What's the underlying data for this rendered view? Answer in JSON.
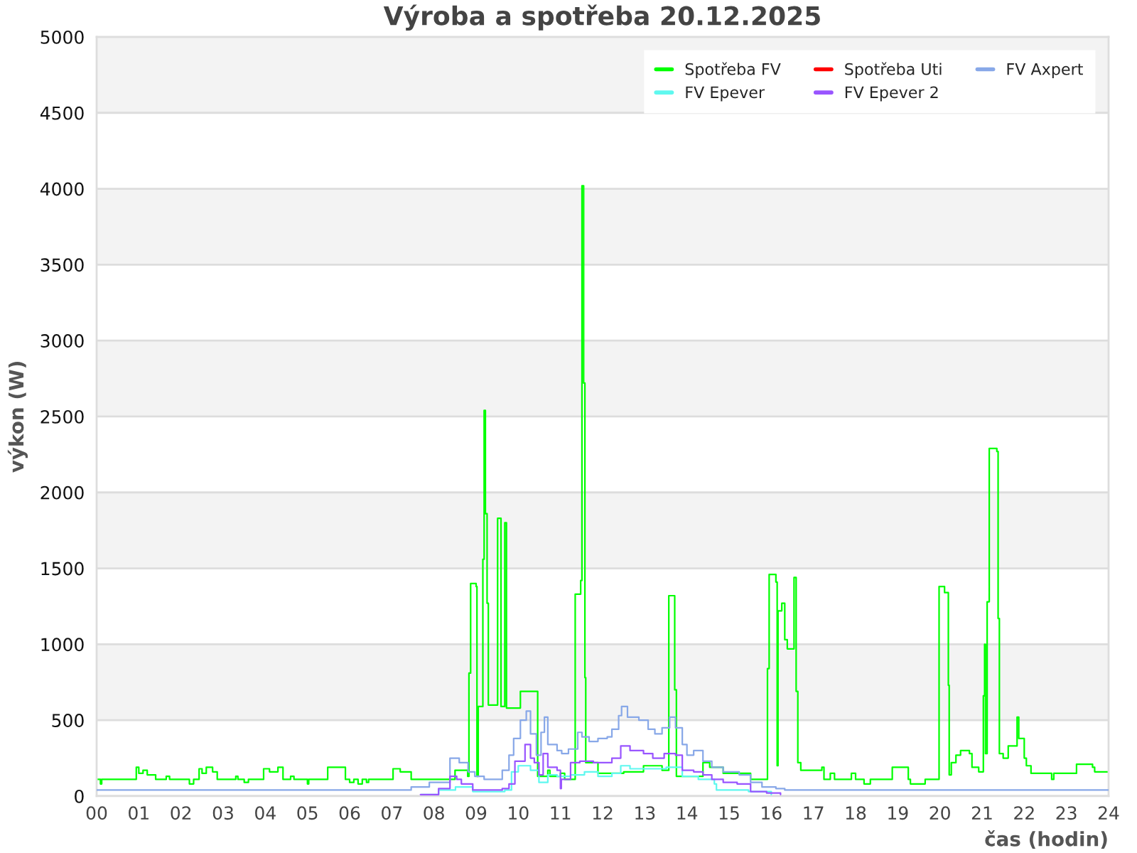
{
  "chart_data": {
    "type": "step",
    "title": "Výroba a spotřeba 20.12.2025",
    "xlabel": "čas (hodin)",
    "ylabel": "výkon (W)",
    "xlim": [
      0,
      24
    ],
    "xticks": [
      {
        "value": 0,
        "label": "00"
      },
      {
        "value": 1,
        "label": "01"
      },
      {
        "value": 2,
        "label": "02"
      },
      {
        "value": 3,
        "label": "03"
      },
      {
        "value": 4,
        "label": "04"
      },
      {
        "value": 5,
        "label": "05"
      },
      {
        "value": 6,
        "label": "06"
      },
      {
        "value": 7,
        "label": "07"
      },
      {
        "value": 8,
        "label": "08"
      },
      {
        "value": 9,
        "label": "09"
      },
      10,
      11,
      12,
      13,
      14,
      15,
      16,
      17,
      18,
      19,
      20,
      21,
      22,
      23,
      24
    ],
    "ylim": [
      0,
      5000
    ],
    "yticks": [
      0,
      500,
      1000,
      1500,
      2000,
      2500,
      3000,
      3500,
      4000,
      4500,
      5000
    ],
    "grid": "y",
    "legend": "top right",
    "series": [
      {
        "name": "Spotřeba FV",
        "color": "#00ff00",
        "x": [
          0,
          0.09,
          0.12,
          0.94,
          1.0,
          1.1,
          1.2,
          1.4,
          1.65,
          1.73,
          2.2,
          2.3,
          2.43,
          2.5,
          2.6,
          2.75,
          2.86,
          3.3,
          3.35,
          3.5,
          3.6,
          3.96,
          4.1,
          4.3,
          4.42,
          4.6,
          4.68,
          5.0,
          5.03,
          5.48,
          5.9,
          6.0,
          6.1,
          6.2,
          6.3,
          6.4,
          6.45,
          7.03,
          7.2,
          7.46,
          8.5,
          8.8,
          8.83,
          8.87,
          9.0,
          9.02,
          9.05,
          9.16,
          9.19,
          9.22,
          9.26,
          9.29,
          9.51,
          9.59,
          9.68,
          9.72,
          10.05,
          10.46,
          10.7,
          10.75,
          11.0,
          11.1,
          11.35,
          11.48,
          11.51,
          11.55,
          11.58,
          11.6,
          11.89,
          12.5,
          12.97,
          13.41,
          13.57,
          13.71,
          13.75,
          14.38,
          14.54,
          14.86,
          15.51,
          15.91,
          15.95,
          16.11,
          16.14,
          16.16,
          16.25,
          16.32,
          16.38,
          16.54,
          16.59,
          16.63,
          16.7,
          17.2,
          17.25,
          17.4,
          17.5,
          17.9,
          18.0,
          18.2,
          18.35,
          18.81,
          18.87,
          19.25,
          19.3,
          19.65,
          19.98,
          20.11,
          20.2,
          20.22,
          20.27,
          20.38,
          20.49,
          20.7,
          20.76,
          20.92,
          21.03,
          21.06,
          21.08,
          21.12,
          21.17,
          21.35,
          21.38,
          21.41,
          21.5,
          21.62,
          21.83,
          21.87,
          22.0,
          22.05,
          22.16,
          22.65,
          22.7,
          23.24,
          23.62,
          23.67,
          24.0
        ],
        "values": [
          110,
          80,
          110,
          190,
          150,
          170,
          140,
          110,
          130,
          110,
          80,
          110,
          180,
          150,
          190,
          160,
          110,
          130,
          110,
          90,
          110,
          180,
          160,
          190,
          110,
          130,
          110,
          80,
          110,
          190,
          110,
          90,
          110,
          80,
          110,
          90,
          110,
          180,
          160,
          110,
          170,
          130,
          810,
          1400,
          1380,
          130,
          590,
          1560,
          2540,
          1860,
          1270,
          600,
          1830,
          590,
          1800,
          580,
          690,
          130,
          170,
          130,
          150,
          110,
          1330,
          1420,
          4020,
          2720,
          780,
          220,
          150,
          160,
          200,
          170,
          1320,
          700,
          130,
          220,
          190,
          150,
          110,
          840,
          1460,
          1410,
          200,
          1220,
          1270,
          1030,
          970,
          1440,
          690,
          220,
          170,
          190,
          110,
          150,
          110,
          150,
          110,
          80,
          110,
          110,
          190,
          110,
          80,
          110,
          1380,
          1340,
          730,
          140,
          220,
          270,
          300,
          280,
          190,
          160,
          660,
          1000,
          280,
          1280,
          2290,
          2270,
          1170,
          280,
          250,
          330,
          520,
          380,
          250,
          200,
          150,
          110,
          150,
          210,
          190,
          160,
          150
        ]
      },
      {
        "name": "Spotřeba Uti",
        "color": "#ff0000"
      },
      {
        "name": "FV Axpert",
        "color": "#88a8e8",
        "x": [
          0,
          7.3,
          7.46,
          7.89,
          8.38,
          8.6,
          8.81,
          8.97,
          9.19,
          9.62,
          9.78,
          9.89,
          10.05,
          10.19,
          10.29,
          10.43,
          10.54,
          10.62,
          10.7,
          10.92,
          11.03,
          11.19,
          11.41,
          11.51,
          11.68,
          11.89,
          12.11,
          12.22,
          12.38,
          12.45,
          12.59,
          12.86,
          13.08,
          13.24,
          13.41,
          13.59,
          13.73,
          13.89,
          14.0,
          14.16,
          14.38,
          14.59,
          14.86,
          15.24,
          15.51,
          15.78,
          16.11,
          16.32,
          24
        ],
        "values": [
          40,
          40,
          60,
          90,
          250,
          220,
          160,
          130,
          110,
          170,
          270,
          380,
          500,
          560,
          410,
          270,
          420,
          520,
          340,
          300,
          280,
          310,
          420,
          390,
          360,
          380,
          390,
          440,
          530,
          590,
          520,
          500,
          440,
          410,
          450,
          520,
          450,
          340,
          270,
          300,
          230,
          190,
          160,
          140,
          90,
          60,
          50,
          40,
          40
        ]
      },
      {
        "name": "FV Epever",
        "color": "#5ff8ef",
        "x": [
          7.7,
          8.11,
          8.51,
          8.92,
          9.68,
          9.84,
          10.0,
          10.16,
          10.29,
          10.49,
          10.7,
          10.92,
          11.24,
          11.57,
          11.89,
          12.22,
          12.43,
          12.65,
          13.08,
          13.51,
          13.89,
          14.27,
          14.65,
          14.7,
          15.46,
          16.0
        ],
        "values": [
          10,
          40,
          60,
          30,
          40,
          160,
          200,
          200,
          170,
          90,
          140,
          130,
          140,
          160,
          130,
          150,
          200,
          180,
          180,
          190,
          130,
          110,
          80,
          40,
          30,
          10
        ]
      },
      {
        "name": "FV Epever 2",
        "color": "#9955ff",
        "x": [
          7.68,
          8.11,
          8.38,
          8.54,
          8.65,
          8.92,
          9.62,
          9.78,
          9.92,
          10.16,
          10.29,
          10.38,
          10.49,
          10.59,
          10.7,
          10.92,
          11.0,
          11.02,
          11.24,
          11.46,
          11.78,
          12.22,
          12.43,
          12.65,
          12.97,
          13.19,
          13.46,
          13.73,
          13.89,
          14.16,
          14.38,
          14.59,
          14.86,
          15.19,
          15.51,
          15.89,
          16.22
        ],
        "values": [
          10,
          50,
          130,
          110,
          80,
          40,
          50,
          80,
          230,
          340,
          250,
          220,
          140,
          280,
          190,
          170,
          50,
          110,
          220,
          230,
          220,
          250,
          330,
          300,
          280,
          250,
          280,
          270,
          170,
          160,
          140,
          110,
          90,
          80,
          30,
          20,
          10
        ]
      }
    ]
  }
}
